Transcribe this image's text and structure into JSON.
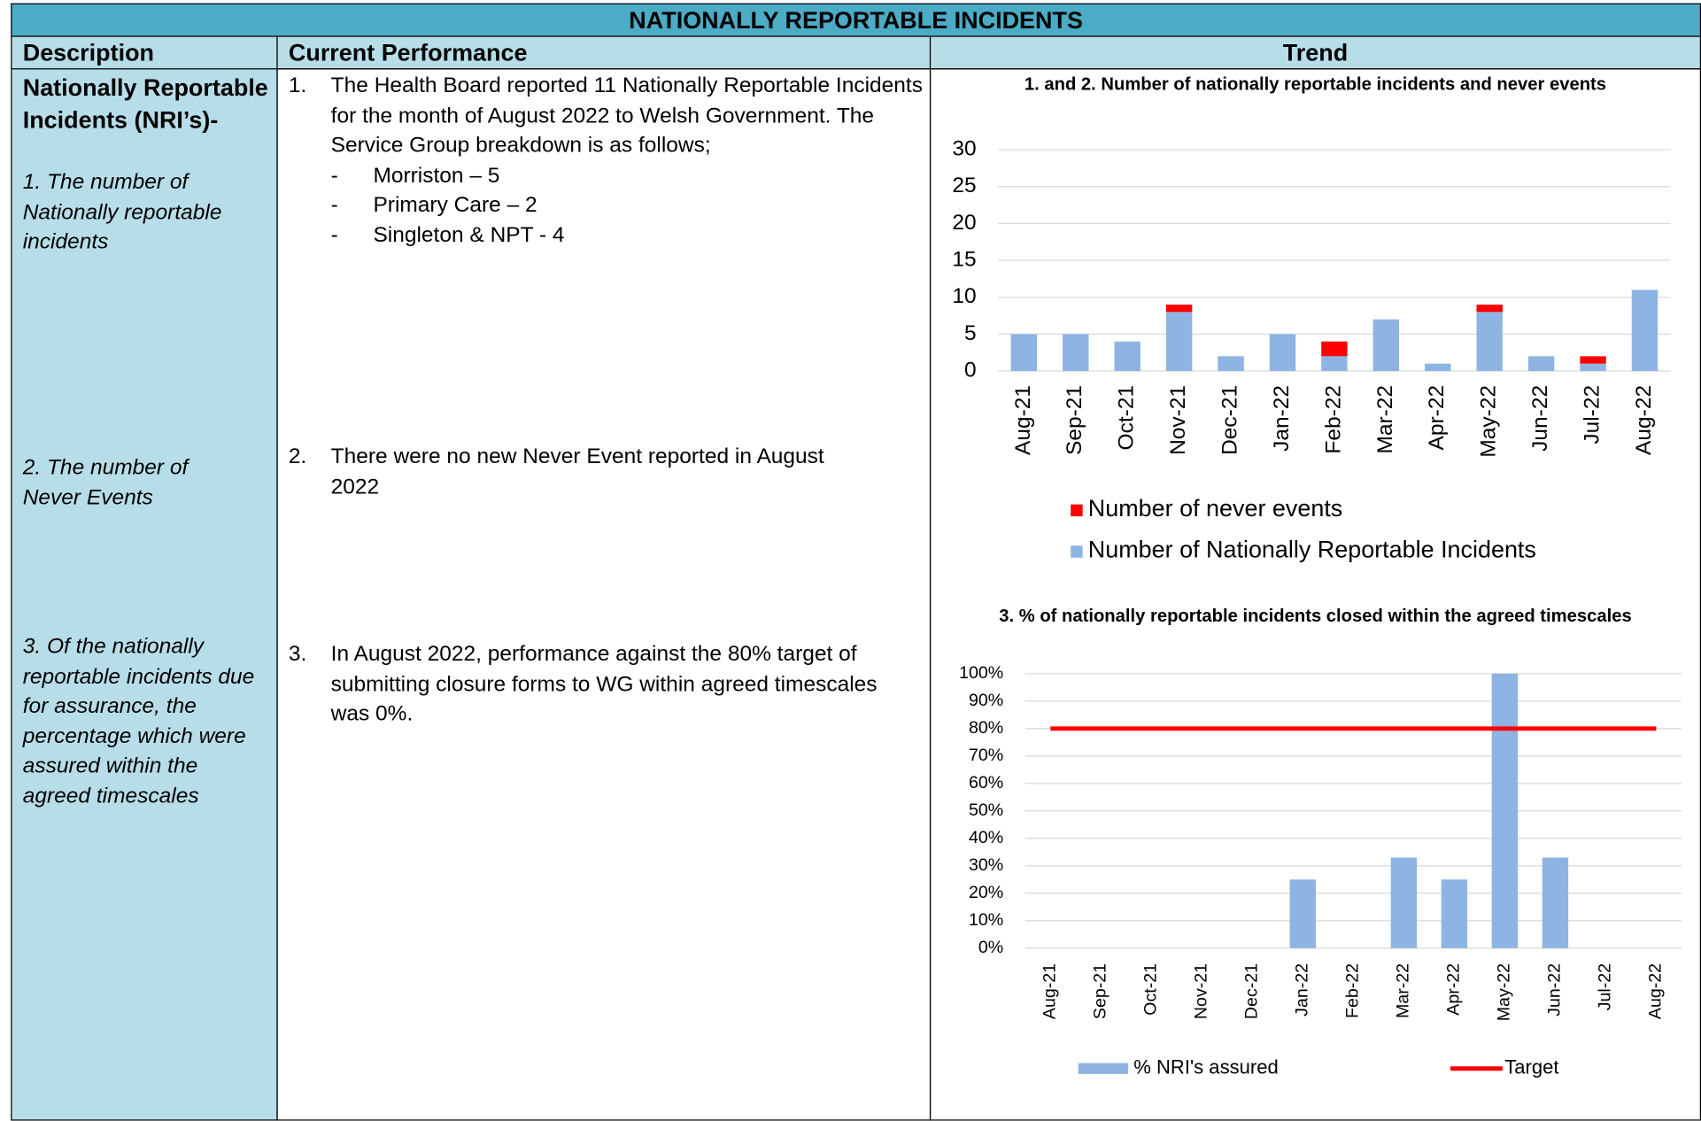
{
  "title": "NATIONALLY REPORTABLE INCIDENTS",
  "headers": [
    "Description",
    "Current Performance",
    "Trend"
  ],
  "description": {
    "heading": "Nationally Reportable Incidents (NRI’s)-",
    "items": [
      "1. The number of Nationally reportable incidents",
      "2. The number of Never Events",
      "3. Of the nationally reportable incidents due for assurance, the percentage which were assured within the agreed timescales"
    ]
  },
  "performance": [
    {
      "number": "1.",
      "text": "The Health Board reported 11 Nationally Reportable Incidents for the month of August 2022 to Welsh Government.   The Service Group breakdown is as follows;",
      "bullets": [
        {
          "marker": "-",
          "text": "Morriston – 5"
        },
        {
          "marker": "-",
          "text": "Primary Care – 2"
        },
        {
          "marker": "-",
          "text": "Singleton & NPT - 4"
        }
      ]
    },
    {
      "number": "2.",
      "text": "There were no new Never Event reported in August 2022"
    },
    {
      "number": "3.",
      "text": "In August 2022, performance against the 80% target of submitting closure forms to WG within agreed timescales was 0%."
    }
  ],
  "chart_data": [
    {
      "type": "bar",
      "stacked": true,
      "title": "1. and 2. Number of nationally reportable incidents and never events",
      "categories": [
        "Aug-21",
        "Sep-21",
        "Oct-21",
        "Nov-21",
        "Dec-21",
        "Jan-22",
        "Feb-22",
        "Mar-22",
        "Apr-22",
        "May-22",
        "Jun-22",
        "Jul-22",
        "Aug-22"
      ],
      "series": [
        {
          "name": "Number of Nationally Reportable Incidents",
          "color": "#8db4e2",
          "values": [
            5,
            5,
            4,
            8,
            2,
            5,
            2,
            7,
            1,
            8,
            2,
            1,
            11
          ]
        },
        {
          "name": "Number of never events",
          "color": "#ff0000",
          "values": [
            0,
            0,
            0,
            1,
            0,
            0,
            2,
            0,
            0,
            1,
            0,
            1,
            0
          ]
        }
      ],
      "ylim": [
        0,
        30
      ],
      "yticks": [
        0,
        5,
        10,
        15,
        20,
        25,
        30
      ],
      "grid": true,
      "legend": "bottom"
    },
    {
      "type": "bar",
      "title": "3. % of nationally reportable incidents closed within the agreed timescales",
      "categories": [
        "Aug-21",
        "Sep-21",
        "Oct-21",
        "Nov-21",
        "Dec-21",
        "Jan-22",
        "Feb-22",
        "Mar-22",
        "Apr-22",
        "May-22",
        "Jun-22",
        "Jul-22",
        "Aug-22"
      ],
      "series": [
        {
          "name": "% NRI's assured",
          "color": "#8db4e2",
          "values": [
            0,
            0,
            0,
            0,
            0,
            25,
            0,
            33,
            25,
            100,
            33,
            0,
            0
          ]
        },
        {
          "name": "Target",
          "type": "line",
          "color": "#ff0000",
          "values": [
            80,
            80,
            80,
            80,
            80,
            80,
            80,
            80,
            80,
            80,
            80,
            80,
            80
          ]
        }
      ],
      "ylim": [
        0,
        100
      ],
      "yticks": [
        {
          "value": 0,
          "label": "0%"
        },
        {
          "value": 10,
          "label": "10%"
        },
        {
          "value": 20,
          "label": "20%"
        },
        {
          "value": 30,
          "label": "30%"
        },
        {
          "value": 40,
          "label": "40%"
        },
        {
          "value": 50,
          "label": "50%"
        },
        {
          "value": 60,
          "label": "60%"
        },
        {
          "value": 70,
          "label": "70%"
        },
        {
          "value": 80,
          "label": "80%"
        },
        {
          "value": 90,
          "label": "90%"
        },
        {
          "value": 100,
          "label": "100%"
        }
      ],
      "grid": true,
      "legend": "bottom"
    }
  ]
}
